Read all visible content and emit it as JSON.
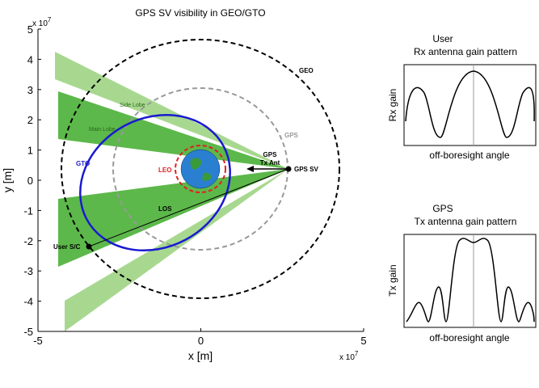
{
  "main": {
    "title": "GPS SV visibility in GEO/GTO",
    "xlabel": "x [m]",
    "ylabel": "y [m]",
    "x_exponent": {
      "base": "x 10",
      "exp": "7"
    },
    "y_exponent": {
      "base": "x 10",
      "exp": "7"
    },
    "xlim": [
      -5,
      5
    ],
    "ylim": [
      -5,
      5
    ],
    "xticks": [
      -5,
      0,
      5
    ],
    "yticks": [
      -5,
      -4,
      -3,
      -2,
      -1,
      0,
      1,
      2,
      3,
      4,
      5
    ],
    "annotations": {
      "geo": "GEO",
      "gps": "GPS",
      "leo": "LEO",
      "gto": "GTO",
      "side_lobe": "Side Lobe",
      "main_lobe": "Main Lobe",
      "gps_tx_ant": [
        "GPS",
        "Tx Ant"
      ],
      "gps_sv": "GPS SV",
      "los": "LOS",
      "user": "User S/C"
    }
  },
  "rx_panel": {
    "title": [
      "User",
      "Rx antenna gain pattern"
    ],
    "ylabel": "Rx gain",
    "xlabel": "off-boresight angle"
  },
  "tx_panel": {
    "title": [
      "GPS",
      "Tx antenna gain pattern"
    ],
    "ylabel": "Tx gain",
    "xlabel": "off-boresight angle"
  }
}
